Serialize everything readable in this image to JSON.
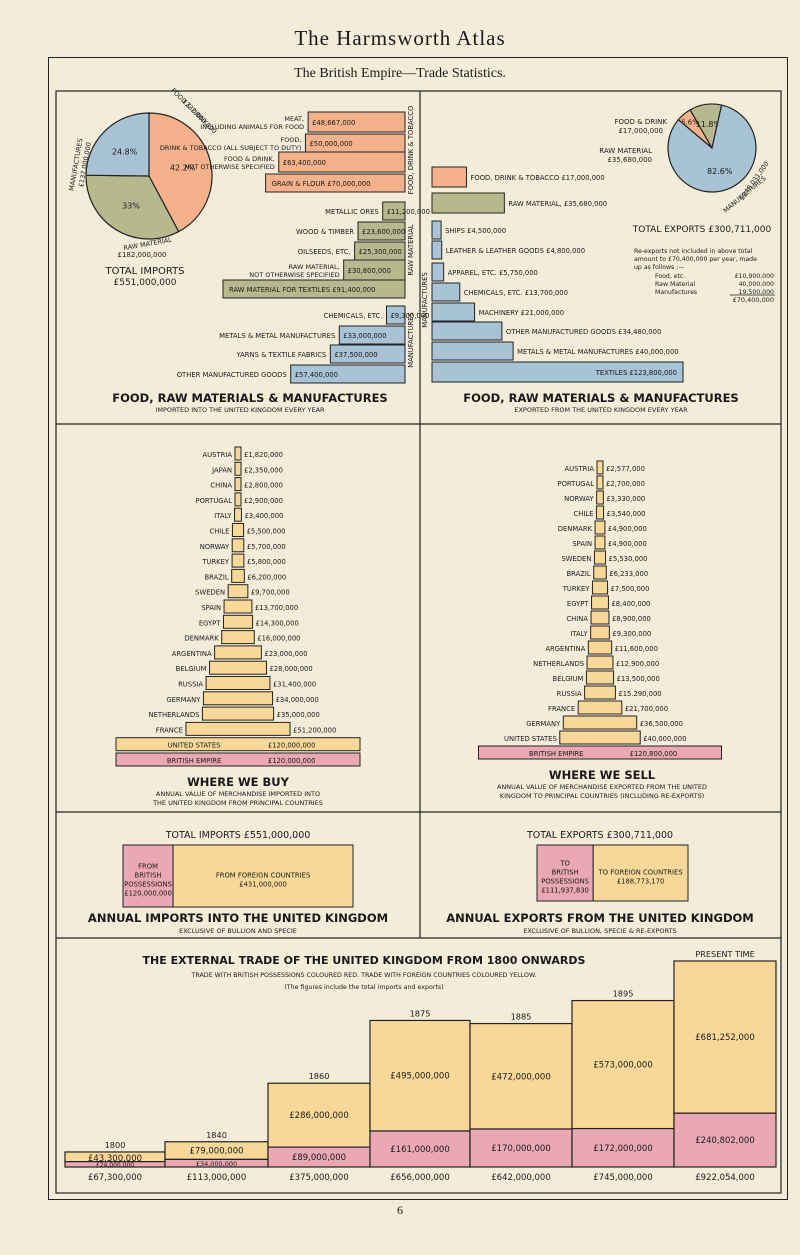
{
  "header": {
    "atlas_title": "The Harmsworth Atlas",
    "subtitle": "The British Empire—Trade Statistics.",
    "page_number": "6"
  },
  "colors": {
    "food": "#f4b28c",
    "raw": "#b6b98e",
    "manuf": "#a8c2d6",
    "british": "#eaa8b4",
    "foreign": "#f8d898",
    "paper": "#f3ecd9",
    "line": "#222222"
  },
  "chart_data": [
    {
      "type": "pie",
      "title": "TOTAL IMPORTS",
      "total_label": "£551,000,000",
      "slices": [
        {
          "name": "FOOD & DRINK",
          "value_label": "£232,000,000",
          "percent": 42.2,
          "percent_label": "42.2%",
          "color": "#f4b28c"
        },
        {
          "name": "RAW MATERIAL",
          "value_label": "£182,000,000",
          "percent": 33.0,
          "percent_label": "33%",
          "color": "#b6b98e"
        },
        {
          "name": "MANUFACTURES",
          "value_label": "£137,000,000",
          "percent": 24.8,
          "percent_label": "24.8%",
          "color": "#a8c2d6"
        }
      ]
    },
    {
      "type": "bar",
      "title": "FOOD, RAW MATERIALS & MANUFACTURES",
      "subtitle": "IMPORTED INTO THE UNITED KINGDOM EVERY YEAR",
      "groups": [
        "FOOD, DRINK & TOBACCO",
        "RAW MATERIAL",
        "MANUFACTURES"
      ],
      "items": [
        {
          "label": "MEAT, INCLUDING ANIMALS FOR FOOD",
          "value": 48667000,
          "value_label": "£48,667,000",
          "group": 0
        },
        {
          "label": "FOOD, DRINK & TOBACCO (ALL SUBJECT TO DUTY)",
          "value": 50000000,
          "value_label": "£50,000,000",
          "group": 0
        },
        {
          "label": "FOOD & DRINK, NOT OTHERWISE SPECIFIED",
          "value": 63400000,
          "value_label": "£63,400,000",
          "group": 0
        },
        {
          "label": "GRAIN & FLOUR",
          "value": 70000000,
          "value_label": "£70,000,000",
          "group": 0
        },
        {
          "label": "METALLIC ORES",
          "value": 11200000,
          "value_label": "£11,200,000",
          "group": 1
        },
        {
          "label": "WOOD & TIMBER",
          "value": 23600000,
          "value_label": "£23,600,000",
          "group": 1
        },
        {
          "label": "OILSEEDS, ETC.",
          "value": 25300000,
          "value_label": "£25,300,000",
          "group": 1
        },
        {
          "label": "RAW MATERIAL, NOT OTHERWISE SPECIFIED",
          "value": 30800000,
          "value_label": "£30,800,000",
          "group": 1
        },
        {
          "label": "RAW MATERIAL FOR TEXTILES",
          "value": 91400000,
          "value_label": "£91,400,000",
          "group": 1
        },
        {
          "label": "CHEMICALS, ETC.",
          "value": 9300000,
          "value_label": "£9,300,000",
          "group": 2
        },
        {
          "label": "METALS & METAL MANUFACTURES",
          "value": 33000000,
          "value_label": "£33,000,000",
          "group": 2
        },
        {
          "label": "YARNS & TEXTILE FABRICS",
          "value": 37500000,
          "value_label": "£37,500,000",
          "group": 2
        },
        {
          "label": "OTHER MANUFACTURED GOODS",
          "value": 57400000,
          "value_label": "£57,400,000",
          "group": 2
        }
      ]
    },
    {
      "type": "pie",
      "title": "TOTAL EXPORTS",
      "total_label": "£300,711,000",
      "slices": [
        {
          "name": "FOOD & DRINK",
          "value_label": "£17,000,000",
          "percent": 5.6,
          "percent_label": "5.6%",
          "color": "#f4b28c"
        },
        {
          "name": "RAW MATERIAL",
          "value_label": "£35,680,000",
          "percent": 11.8,
          "percent_label": "11.8%",
          "color": "#b6b98e"
        },
        {
          "name": "MANUFACTURES",
          "value_label": "£248,031,000",
          "percent": 82.6,
          "percent_label": "82.6%",
          "color": "#a8c2d6"
        }
      ],
      "note": "Re-exports not included in above total amount to £70,400,000 per year, made up as follows :—",
      "note_rows": [
        {
          "label": "Food, etc.",
          "value": "£10,900,000"
        },
        {
          "label": "Raw Material",
          "value": "40,000,000"
        },
        {
          "label": "Manufactures",
          "value": "19,500,000"
        }
      ],
      "note_total": "£70,400,000"
    },
    {
      "type": "bar",
      "title": "FOOD, RAW MATERIALS & MANUFACTURES",
      "subtitle": "EXPORTED FROM THE UNITED KINGDOM EVERY YEAR",
      "groups": [
        "FOOD, DRINK & TOBACCO",
        "RAW MATERIAL",
        "MANUFACTURES"
      ],
      "items": [
        {
          "label": "FOOD, DRINK & TOBACCO",
          "value": 17000000,
          "value_label": "£17,000,000",
          "group": 0
        },
        {
          "label": "RAW MATERIAL,",
          "value": 35680000,
          "value_label": "£35,680,000",
          "group": 1
        },
        {
          "label": "SHIPS",
          "value": 4500000,
          "value_label": "£4,500,000",
          "group": 2
        },
        {
          "label": "LEATHER & LEATHER GOODS",
          "value": 4800000,
          "value_label": "£4,800,000",
          "group": 2
        },
        {
          "label": "APPAREL, ETC.",
          "value": 5750000,
          "value_label": "£5,750,000",
          "group": 2
        },
        {
          "label": "CHEMICALS, ETC.",
          "value": 13700000,
          "value_label": "£13,700,000",
          "group": 2
        },
        {
          "label": "MACHINERY",
          "value": 21000000,
          "value_label": "£21,000,000",
          "group": 2
        },
        {
          "label": "OTHER MANUFACTURED GOODS",
          "value": 34480000,
          "value_label": "£34,480,000",
          "group": 2
        },
        {
          "label": "METALS & METAL MANUFACTURES",
          "value": 40000000,
          "value_label": "£40,000,000",
          "group": 2
        },
        {
          "label": "TEXTILES",
          "value": 123800000,
          "value_label": "£123,800,000",
          "group": 2
        }
      ]
    },
    {
      "type": "bar",
      "title": "WHERE WE BUY",
      "subtitle": "ANNUAL VALUE OF MERCHANDISE IMPORTED INTO THE UNITED KINGDOM FROM PRINCIPAL COUNTRIES",
      "items": [
        {
          "label": "AUSTRIA",
          "value": 1820000,
          "value_label": "£1,820,000"
        },
        {
          "label": "JAPAN",
          "value": 2350000,
          "value_label": "£2,350,000"
        },
        {
          "label": "CHINA",
          "value": 2800000,
          "value_label": "£2,800,000"
        },
        {
          "label": "PORTUGAL",
          "value": 2900000,
          "value_label": "£2,900,000"
        },
        {
          "label": "ITALY",
          "value": 3400000,
          "value_label": "£3,400,000"
        },
        {
          "label": "CHILE",
          "value": 5500000,
          "value_label": "£5,500,000"
        },
        {
          "label": "NORWAY",
          "value": 5700000,
          "value_label": "£5,700,000"
        },
        {
          "label": "TURKEY",
          "value": 5800000,
          "value_label": "£5,800,000"
        },
        {
          "label": "BRAZIL",
          "value": 6200000,
          "value_label": "£6,200,000"
        },
        {
          "label": "SWEDEN",
          "value": 9700000,
          "value_label": "£9,700,000"
        },
        {
          "label": "SPAIN",
          "value": 13700000,
          "value_label": "£13,700,000"
        },
        {
          "label": "EGYPT",
          "value": 14300000,
          "value_label": "£14,300,000"
        },
        {
          "label": "DENMARK",
          "value": 16000000,
          "value_label": "£16,000,000"
        },
        {
          "label": "ARGENTINA",
          "value": 23000000,
          "value_label": "£23,000,000"
        },
        {
          "label": "BELGIUM",
          "value": 28000000,
          "value_label": "£28,000,000"
        },
        {
          "label": "RUSSIA",
          "value": 31400000,
          "value_label": "£31,400,000"
        },
        {
          "label": "GERMANY",
          "value": 34000000,
          "value_label": "£34,000,000"
        },
        {
          "label": "NETHERLANDS",
          "value": 35000000,
          "value_label": "£35,000,000"
        },
        {
          "label": "FRANCE",
          "value": 51200000,
          "value_label": "£51,200,000"
        },
        {
          "label": "UNITED STATES",
          "value": 120000000,
          "value_label": "£120,000,000",
          "inside": true,
          "color": "#f8d898"
        },
        {
          "label": "BRITISH EMPIRE",
          "value": 120000000,
          "value_label": "£120,000,000",
          "inside": true,
          "color": "#eaa8b4"
        }
      ]
    },
    {
      "type": "bar",
      "title": "WHERE WE SELL",
      "subtitle": "ANNUAL VALUE OF MERCHANDISE EXPORTED FROM THE UNITED KINGDOM TO PRINCIPAL COUNTRIES (INCLUDING RE-EXPORTS)",
      "items": [
        {
          "label": "AUSTRIA",
          "value": 2577000,
          "value_label": "£2,577,000"
        },
        {
          "label": "PORTUGAL",
          "value": 2700000,
          "value_label": "£2,700,000"
        },
        {
          "label": "NORWAY",
          "value": 3330000,
          "value_label": "£3,330,000"
        },
        {
          "label": "CHILE",
          "value": 3540000,
          "value_label": "£3,540,000"
        },
        {
          "label": "DENMARK",
          "value": 4900000,
          "value_label": "£4,900,000"
        },
        {
          "label": "SPAIN",
          "value": 4900000,
          "value_label": "£4,900,000"
        },
        {
          "label": "SWEDEN",
          "value": 5530000,
          "value_label": "£5,530,000"
        },
        {
          "label": "BRAZIL",
          "value": 6233000,
          "value_label": "£6,233,000"
        },
        {
          "label": "TURKEY",
          "value": 7500000,
          "value_label": "£7,500,000"
        },
        {
          "label": "EGYPT",
          "value": 8400000,
          "value_label": "£8,400,000"
        },
        {
          "label": "CHINA",
          "value": 8900000,
          "value_label": "£8,900,000"
        },
        {
          "label": "ITALY",
          "value": 9300000,
          "value_label": "£9,300,000"
        },
        {
          "label": "ARGENTINA",
          "value": 11600000,
          "value_label": "£11,600,000"
        },
        {
          "label": "NETHERLANDS",
          "value": 12900000,
          "value_label": "£12,900,000"
        },
        {
          "label": "BELGIUM",
          "value": 13500000,
          "value_label": "£13,500,000"
        },
        {
          "label": "RUSSIA",
          "value": 15290000,
          "value_label": "£15.290,000"
        },
        {
          "label": "FRANCE",
          "value": 21700000,
          "value_label": "£21,700,000"
        },
        {
          "label": "GERMANY",
          "value": 36500000,
          "value_label": "£36,500,000"
        },
        {
          "label": "UNITED STATES",
          "value": 40000000,
          "value_label": "£40,000,000"
        },
        {
          "label": "BRITISH EMPIRE",
          "value": 120800000,
          "value_label": "£120,800,000",
          "inside": true,
          "color": "#eaa8b4"
        }
      ]
    },
    {
      "type": "bar",
      "title": "ANNUAL IMPORTS INTO THE UNITED KINGDOM",
      "subtitle": "EXCLUSIVE OF BULLION AND SPECIE",
      "total_label": "TOTAL IMPORTS £551,000,000",
      "segments": [
        {
          "label": "FROM BRITISH POSSESSIONS",
          "value": 120000000,
          "value_label": "£120,000,000",
          "color": "#eaa8b4"
        },
        {
          "label": "FROM FOREIGN COUNTRIES",
          "value": 431000000,
          "value_label": "£431,000,000",
          "color": "#f8d898"
        }
      ]
    },
    {
      "type": "bar",
      "title": "ANNUAL EXPORTS FROM THE UNITED KINGDOM",
      "subtitle": "EXCLUSIVE OF BULLION, SPECIE & RE-EXPORTS",
      "total_label": "TOTAL EXPORTS £300,711,000",
      "segments": [
        {
          "label": "TO BRITISH POSSESSIONS",
          "value": 111937830,
          "value_label": "£111,937,830",
          "color": "#eaa8b4"
        },
        {
          "label": "TO FOREIGN COUNTRIES",
          "value": 188773170,
          "value_label": "£188,773,170",
          "color": "#f8d898"
        }
      ]
    },
    {
      "type": "bar",
      "title": "THE EXTERNAL TRADE OF THE UNITED KINGDOM FROM 1800 ONWARDS",
      "subtitle": "TRADE WITH BRITISH POSSESSIONS COLOURED RED. TRADE WITH FOREIGN COUNTRIES COLOURED YELLOW.",
      "note": "(The figures include the total imports and exports)",
      "categories": [
        "1800",
        "1840",
        "1860",
        "1875",
        "1885",
        "1895",
        "PRESENT TIME"
      ],
      "series": [
        {
          "name": "British Possessions",
          "values": [
            24000000,
            34000000,
            89000000,
            161000000,
            170000000,
            172000000,
            240802000
          ],
          "labels": [
            "£24,000,000",
            "£34,000,000",
            "£89,000,000",
            "£161,000,000",
            "£170,000,000",
            "£172,000,000",
            "£240,802,000"
          ]
        },
        {
          "name": "Foreign Countries",
          "values": [
            43300000,
            79000000,
            286000000,
            495000000,
            472000000,
            573000000,
            681252000
          ],
          "labels": [
            "£43,300,000",
            "£79,000,000",
            "£286,000,000",
            "£495,000,000",
            "£472,000,000",
            "£573,000,000",
            "£681,252,000"
          ]
        }
      ],
      "totals": [
        "£67,300,000",
        "£113,000,000",
        "£375,000,000",
        "£656,000,000",
        "£642,000,000",
        "£745,000,000",
        "£922,054,000"
      ]
    }
  ]
}
